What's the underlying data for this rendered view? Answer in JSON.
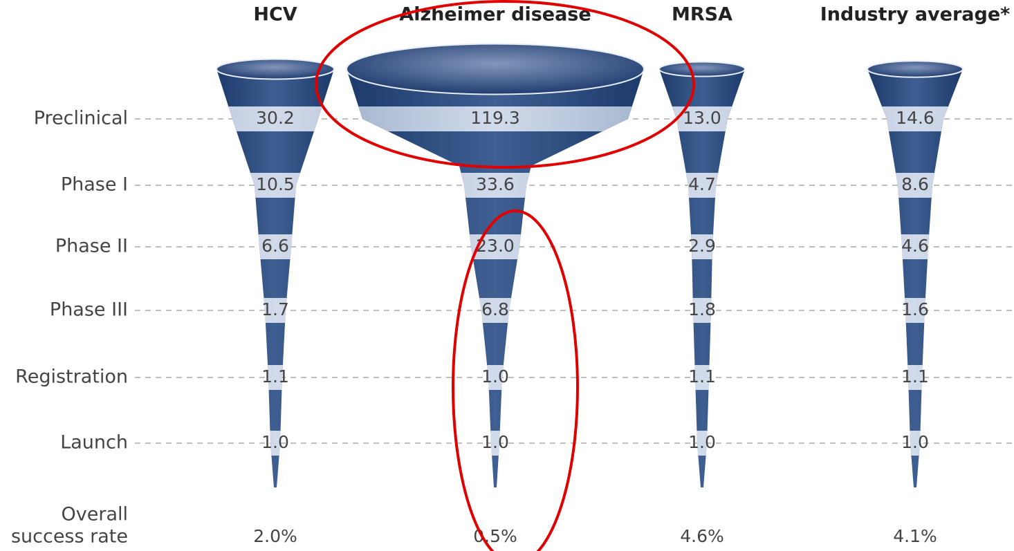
{
  "stages": [
    "Preclinical",
    "Phase I",
    "Phase II",
    "Phase III",
    "Registration",
    "Launch"
  ],
  "overall_label": [
    "Overall",
    "success rate"
  ],
  "columns": [
    {
      "label": "HCV",
      "values": [
        "30.2",
        "10.5",
        "6.6",
        "1.7",
        "1.1",
        "1.0"
      ],
      "overall": "2.0%"
    },
    {
      "label": "Alzheimer disease",
      "values": [
        "119.3",
        "33.6",
        "23.0",
        "6.8",
        "1.0",
        "1.0"
      ],
      "overall": "0.5%"
    },
    {
      "label": "MRSA",
      "values": [
        "13.0",
        "4.7",
        "2.9",
        "1.8",
        "1.1",
        "1.0"
      ],
      "overall": "4.6%"
    },
    {
      "label": "Industry average*",
      "values": [
        "14.6",
        "8.6",
        "4.6",
        "1.6",
        "1.1",
        "1.0"
      ],
      "overall": "4.1%"
    }
  ]
}
